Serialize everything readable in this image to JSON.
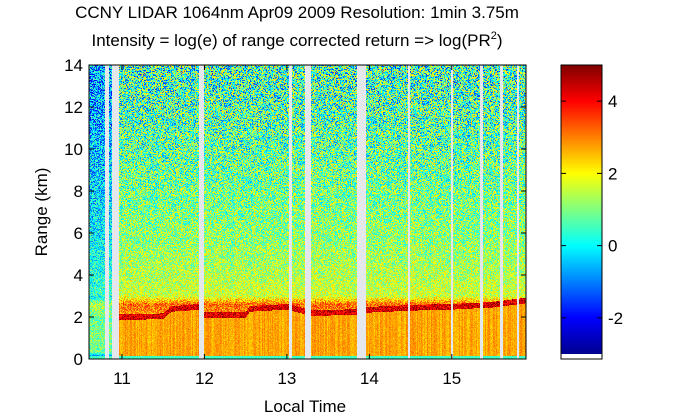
{
  "chart_data": {
    "type": "heatmap",
    "title_line1": "CCNY LIDAR 1064nm Apr09 2009 Resolution: 1min 3.75m",
    "title_line2_prefix": "Intensity = log(e) of range corrected return => log(PR",
    "title_line2_sup": "2",
    "title_line2_suffix": ")",
    "xlabel": "Local Time",
    "ylabel": "Range (km)",
    "xlim": [
      10.6,
      15.9
    ],
    "ylim": [
      0,
      14
    ],
    "x_ticks": [
      11,
      12,
      13,
      14,
      15
    ],
    "x_tick_labels": [
      "11",
      "12",
      "13",
      "14",
      "15"
    ],
    "y_ticks": [
      0,
      2,
      4,
      6,
      8,
      10,
      12,
      14
    ],
    "y_tick_labels": [
      "0",
      "2",
      "4",
      "6",
      "8",
      "10",
      "12",
      "14"
    ],
    "colorbar": {
      "limits": [
        -3,
        5
      ],
      "ticks": [
        -2,
        0,
        2,
        4
      ],
      "tick_labels": [
        "-2",
        "0",
        "2",
        "4"
      ],
      "colormap": "jet"
    },
    "data_gaps_hours": [
      [
        10.8,
        10.84
      ],
      [
        10.88,
        10.96
      ],
      [
        11.93,
        12.0
      ],
      [
        13.02,
        13.06
      ],
      [
        13.22,
        13.29
      ],
      [
        13.85,
        13.96
      ],
      [
        14.47,
        14.49
      ],
      [
        14.99,
        15.01
      ],
      [
        15.34,
        15.38
      ],
      [
        15.58,
        15.62
      ],
      [
        15.79,
        15.81
      ]
    ],
    "boundary_layer_top_km": [
      [
        10.96,
        2.0
      ],
      [
        11.5,
        2.05
      ],
      [
        11.6,
        2.4
      ],
      [
        11.8,
        2.45
      ],
      [
        11.93,
        2.5
      ],
      [
        12.0,
        2.1
      ],
      [
        12.5,
        2.1
      ],
      [
        12.55,
        2.4
      ],
      [
        13.0,
        2.5
      ],
      [
        13.3,
        2.2
      ],
      [
        13.85,
        2.25
      ],
      [
        13.96,
        2.35
      ],
      [
        14.5,
        2.45
      ],
      [
        15.0,
        2.5
      ],
      [
        15.5,
        2.6
      ],
      [
        15.9,
        2.8
      ]
    ],
    "mean_intensity_profile": [
      {
        "range_km": 0.1,
        "value": 0.5
      },
      {
        "range_km": 0.3,
        "value": 2.6
      },
      {
        "range_km": 1.0,
        "value": 2.8
      },
      {
        "range_km": 2.0,
        "value": 2.6
      },
      {
        "range_km": 2.6,
        "value": 3.2
      },
      {
        "range_km": 3.0,
        "value": 1.6
      },
      {
        "range_km": 4.0,
        "value": 1.4
      },
      {
        "range_km": 6.0,
        "value": 1.1
      },
      {
        "range_km": 8.0,
        "value": 0.9
      },
      {
        "range_km": 10.0,
        "value": 0.7
      },
      {
        "range_km": 12.0,
        "value": 0.55
      },
      {
        "range_km": 14.0,
        "value": 0.45
      }
    ]
  }
}
